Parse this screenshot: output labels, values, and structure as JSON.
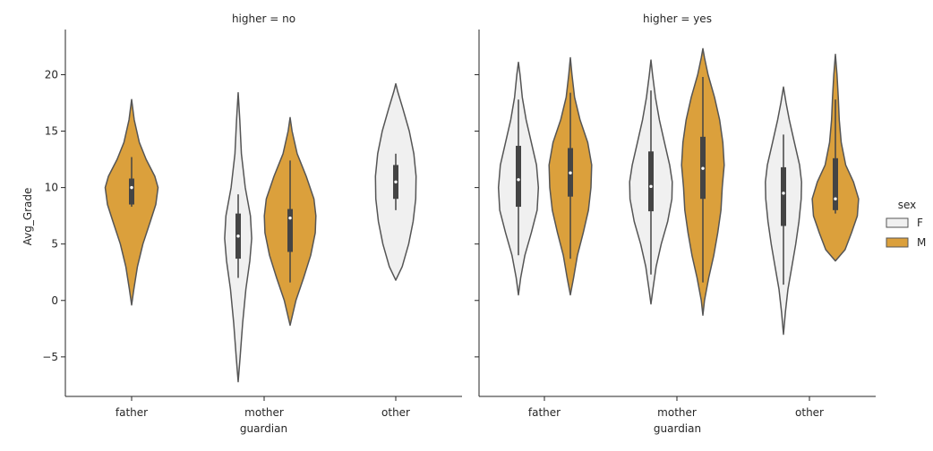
{
  "chart_data": {
    "type": "violin",
    "ylabel": "Avg_Grade",
    "xlabel": "guardian",
    "ylim": [
      -8.5,
      24
    ],
    "yticks": [
      -5,
      0,
      5,
      10,
      15,
      20
    ],
    "ytick_labels": [
      "−5",
      "0",
      "5",
      "10",
      "15",
      "20"
    ],
    "categories": [
      "father",
      "mother",
      "other"
    ],
    "grid": false,
    "legend": {
      "title": "sex",
      "position": "right",
      "entries": [
        {
          "name": "F",
          "color": "#f0f0f0"
        },
        {
          "name": "M",
          "color": "#dba03c"
        }
      ]
    },
    "colors": {
      "F": "#f0f0f0",
      "M": "#dba03c",
      "outline": "#555555",
      "box": "#444444"
    },
    "panels": [
      {
        "title": "higher = no",
        "violins": [
          {
            "category": "father",
            "sex": "M",
            "min": -0.4,
            "max": 17.8,
            "widths": [
              [
                -0.4,
                0
              ],
              [
                1,
                0.07
              ],
              [
                3,
                0.18
              ],
              [
                5,
                0.35
              ],
              [
                7,
                0.58
              ],
              [
                8.5,
                0.75
              ],
              [
                10,
                0.82
              ],
              [
                11,
                0.72
              ],
              [
                12.5,
                0.45
              ],
              [
                14,
                0.24
              ],
              [
                16,
                0.08
              ],
              [
                17.8,
                0
              ]
            ],
            "q1": 8.5,
            "median": 10,
            "q3": 10.8,
            "whisker_low": 8.3,
            "whisker_high": 12.7
          },
          {
            "category": "mother",
            "sex": "F",
            "min": -7.2,
            "max": 18.4,
            "widths": [
              [
                -7.2,
                0
              ],
              [
                -5,
                0.06
              ],
              [
                -2,
                0.14
              ],
              [
                1,
                0.24
              ],
              [
                3.5,
                0.36
              ],
              [
                5.5,
                0.42
              ],
              [
                7.5,
                0.38
              ],
              [
                10,
                0.22
              ],
              [
                13,
                0.1
              ],
              [
                16,
                0.05
              ],
              [
                18.4,
                0
              ]
            ],
            "q1": 3.7,
            "median": 5.7,
            "q3": 7.7,
            "whisker_low": 2,
            "whisker_high": 9.4
          },
          {
            "category": "mother",
            "sex": "M",
            "min": -2.2,
            "max": 16.2,
            "widths": [
              [
                -2.2,
                0
              ],
              [
                0,
                0.18
              ],
              [
                2,
                0.42
              ],
              [
                4,
                0.64
              ],
              [
                6,
                0.78
              ],
              [
                7.5,
                0.8
              ],
              [
                9,
                0.74
              ],
              [
                11,
                0.5
              ],
              [
                13,
                0.22
              ],
              [
                15,
                0.06
              ],
              [
                16.2,
                0
              ]
            ],
            "q1": 4.3,
            "median": 7.3,
            "q3": 8.1,
            "whisker_low": 1.6,
            "whisker_high": 12.4
          },
          {
            "category": "other",
            "sex": "F",
            "min": 1.8,
            "max": 19.2,
            "widths": [
              [
                1.8,
                0
              ],
              [
                3,
                0.2
              ],
              [
                5,
                0.4
              ],
              [
                7,
                0.54
              ],
              [
                9,
                0.62
              ],
              [
                11,
                0.63
              ],
              [
                13,
                0.56
              ],
              [
                15,
                0.42
              ],
              [
                17,
                0.22
              ],
              [
                18.5,
                0.06
              ],
              [
                19.2,
                0
              ]
            ],
            "q1": 9,
            "median": 10.5,
            "q3": 12,
            "whisker_low": 8,
            "whisker_high": 13
          }
        ]
      },
      {
        "title": "higher = yes",
        "violins": [
          {
            "category": "father",
            "sex": "F",
            "min": 0.5,
            "max": 21.1,
            "widths": [
              [
                0.5,
                0
              ],
              [
                2,
                0.07
              ],
              [
                4,
                0.2
              ],
              [
                6,
                0.4
              ],
              [
                8,
                0.58
              ],
              [
                10,
                0.62
              ],
              [
                12,
                0.56
              ],
              [
                14,
                0.4
              ],
              [
                16,
                0.24
              ],
              [
                18,
                0.12
              ],
              [
                20,
                0.05
              ],
              [
                21.1,
                0
              ]
            ],
            "q1": 8.3,
            "median": 10.7,
            "q3": 13.7,
            "whisker_low": 4,
            "whisker_high": 17.8
          },
          {
            "category": "father",
            "sex": "M",
            "min": 0.5,
            "max": 21.5,
            "widths": [
              [
                0.5,
                0
              ],
              [
                2,
                0.1
              ],
              [
                4,
                0.22
              ],
              [
                6,
                0.4
              ],
              [
                8,
                0.56
              ],
              [
                10,
                0.64
              ],
              [
                12,
                0.66
              ],
              [
                14,
                0.54
              ],
              [
                16,
                0.3
              ],
              [
                18,
                0.13
              ],
              [
                20,
                0.05
              ],
              [
                21.5,
                0
              ]
            ],
            "q1": 9.2,
            "median": 11.3,
            "q3": 13.5,
            "whisker_low": 3.7,
            "whisker_high": 18.4
          },
          {
            "category": "mother",
            "sex": "F",
            "min": -0.3,
            "max": 21.3,
            "widths": [
              [
                -0.3,
                0
              ],
              [
                1,
                0.06
              ],
              [
                3,
                0.16
              ],
              [
                5,
                0.32
              ],
              [
                7,
                0.52
              ],
              [
                9,
                0.65
              ],
              [
                10.5,
                0.66
              ],
              [
                12,
                0.58
              ],
              [
                14,
                0.42
              ],
              [
                16,
                0.26
              ],
              [
                18,
                0.14
              ],
              [
                20,
                0.05
              ],
              [
                21.3,
                0
              ]
            ],
            "q1": 7.9,
            "median": 10.1,
            "q3": 13.2,
            "whisker_low": 2.3,
            "whisker_high": 18.6
          },
          {
            "category": "mother",
            "sex": "M",
            "min": -1.3,
            "max": 22.3,
            "widths": [
              [
                -1.3,
                0
              ],
              [
                0,
                0.05
              ],
              [
                2,
                0.18
              ],
              [
                4,
                0.34
              ],
              [
                6,
                0.46
              ],
              [
                8,
                0.56
              ],
              [
                10,
                0.6
              ],
              [
                12,
                0.66
              ],
              [
                14,
                0.62
              ],
              [
                16,
                0.52
              ],
              [
                18,
                0.36
              ],
              [
                20,
                0.16
              ],
              [
                21.5,
                0.05
              ],
              [
                22.3,
                0
              ]
            ],
            "q1": 9,
            "median": 11.7,
            "q3": 14.5,
            "whisker_low": 1.6,
            "whisker_high": 19.8
          },
          {
            "category": "other",
            "sex": "F",
            "min": -3,
            "max": 18.9,
            "widths": [
              [
                -3,
                0
              ],
              [
                -1,
                0.06
              ],
              [
                1,
                0.14
              ],
              [
                3,
                0.26
              ],
              [
                5,
                0.38
              ],
              [
                7,
                0.48
              ],
              [
                9,
                0.55
              ],
              [
                10.5,
                0.56
              ],
              [
                12,
                0.5
              ],
              [
                14,
                0.34
              ],
              [
                16,
                0.18
              ],
              [
                17.5,
                0.08
              ],
              [
                18.9,
                0
              ]
            ],
            "q1": 6.6,
            "median": 9.5,
            "q3": 11.8,
            "whisker_low": 1.4,
            "whisker_high": 14.7
          },
          {
            "category": "other",
            "sex": "M",
            "min": 3.5,
            "max": 21.8,
            "widths": [
              [
                3.5,
                0
              ],
              [
                4.5,
                0.3
              ],
              [
                6,
                0.5
              ],
              [
                7.5,
                0.68
              ],
              [
                9,
                0.72
              ],
              [
                10.5,
                0.56
              ],
              [
                12,
                0.32
              ],
              [
                14,
                0.18
              ],
              [
                16,
                0.12
              ],
              [
                18,
                0.09
              ],
              [
                20,
                0.05
              ],
              [
                21.8,
                0
              ]
            ],
            "q1": 8,
            "median": 9,
            "q3": 12.6,
            "whisker_low": 7.7,
            "whisker_high": 17.8
          }
        ]
      }
    ]
  }
}
